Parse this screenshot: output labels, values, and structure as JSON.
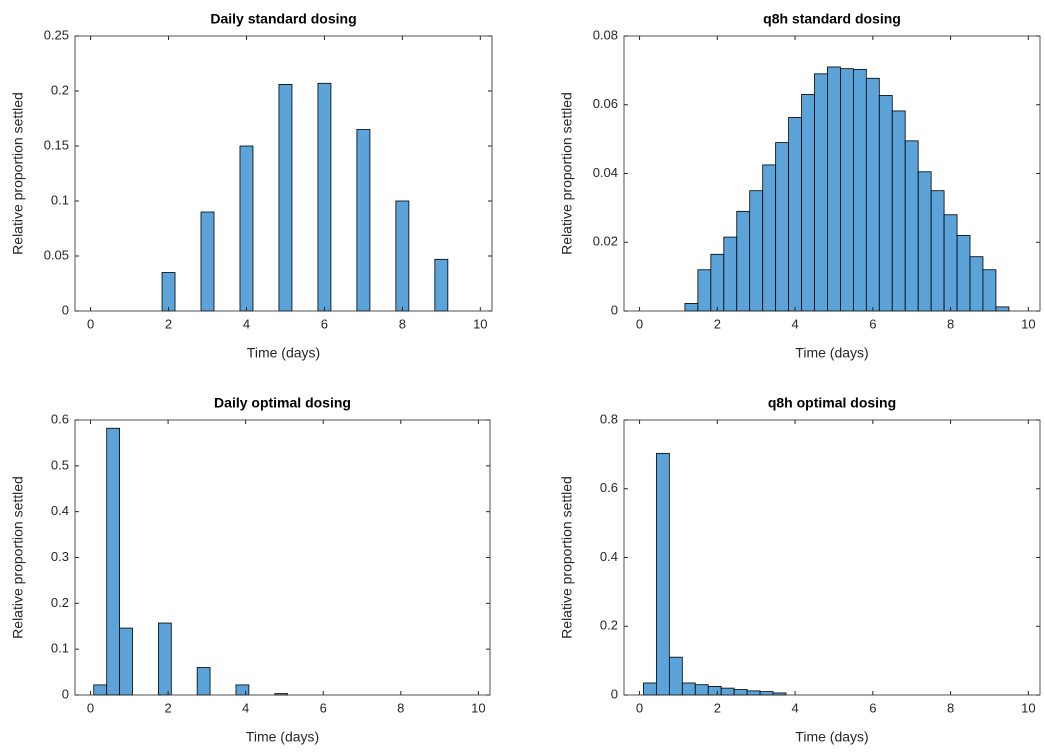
{
  "chart_data": [
    {
      "type": "histogram",
      "title": "Daily standard dosing",
      "xlabel": "Time (days)",
      "ylabel": "Relative proportion settled",
      "bins": [
        1.833,
        2.167,
        2.5,
        2.833,
        3.167,
        3.5,
        3.833,
        4.167,
        4.5,
        4.833,
        5.167,
        5.5,
        5.833,
        6.167,
        6.5,
        6.833,
        7.167,
        7.5,
        7.833,
        8.167,
        8.5,
        8.833,
        9.167
      ],
      "values": [
        0.035,
        0,
        0,
        0.09,
        0,
        0,
        0.15,
        0,
        0,
        0.206,
        0,
        0,
        0.207,
        0,
        0,
        0.165,
        0,
        0,
        0.1,
        0,
        0,
        0.047
      ],
      "color": "#5ba3d8",
      "xlim": [
        -0.4,
        10.3
      ],
      "ylim": [
        0,
        0.25
      ],
      "xticks": [
        0,
        2,
        4,
        6,
        8,
        10
      ],
      "yticks": [
        0,
        0.05,
        0.1,
        0.15,
        0.2,
        0.25
      ]
    },
    {
      "type": "histogram",
      "title": "q8h standard dosing",
      "xlabel": "Time (days)",
      "ylabel": "Relative proportion settled",
      "bins": [
        1.167,
        1.5,
        1.833,
        2.167,
        2.5,
        2.833,
        3.167,
        3.5,
        3.833,
        4.167,
        4.5,
        4.833,
        5.167,
        5.5,
        5.833,
        6.167,
        6.5,
        6.833,
        7.167,
        7.5,
        7.833,
        8.167,
        8.5,
        8.833,
        9.167,
        9.5
      ],
      "values": [
        0.0022,
        0.012,
        0.0165,
        0.0215,
        0.029,
        0.035,
        0.0425,
        0.049,
        0.0563,
        0.063,
        0.069,
        0.071,
        0.0705,
        0.0703,
        0.0677,
        0.0627,
        0.0582,
        0.0495,
        0.0405,
        0.035,
        0.028,
        0.022,
        0.0158,
        0.012,
        0.0012
      ],
      "color": "#5ba3d8",
      "xlim": [
        -0.4,
        10.3
      ],
      "ylim": [
        0,
        0.08
      ],
      "xticks": [
        0,
        2,
        4,
        6,
        8,
        10
      ],
      "yticks": [
        0,
        0.02,
        0.04,
        0.06,
        0.08
      ]
    },
    {
      "type": "histogram",
      "title": "Daily optimal dosing",
      "xlabel": "Time (days)",
      "ylabel": "Relative proportion settled",
      "bins": [
        0.083,
        0.417,
        0.75,
        1.083,
        1.417,
        1.75,
        2.083,
        2.417,
        2.75,
        3.083,
        3.417,
        3.75,
        4.083,
        4.417,
        4.75,
        5.083
      ],
      "values": [
        0.022,
        0.582,
        0.146,
        0,
        0,
        0.157,
        0,
        0,
        0.06,
        0,
        0,
        0.022,
        0,
        0,
        0.003
      ],
      "color": "#5ba3d8",
      "xlim": [
        -0.4,
        10.3
      ],
      "ylim": [
        0,
        0.6
      ],
      "xticks": [
        0,
        2,
        4,
        6,
        8,
        10
      ],
      "yticks": [
        0,
        0.1,
        0.2,
        0.3,
        0.4,
        0.5,
        0.6
      ]
    },
    {
      "type": "histogram",
      "title": "q8h optimal dosing",
      "xlabel": "Time (days)",
      "ylabel": "Relative proportion settled",
      "bins": [
        0.1,
        0.433,
        0.767,
        1.1,
        1.433,
        1.767,
        2.1,
        2.433,
        2.767,
        3.1,
        3.433,
        3.767
      ],
      "values": [
        0.035,
        0.703,
        0.11,
        0.035,
        0.03,
        0.025,
        0.02,
        0.016,
        0.012,
        0.01,
        0.006
      ],
      "color": "#5ba3d8",
      "xlim": [
        -0.4,
        10.3
      ],
      "ylim": [
        0,
        0.8
      ],
      "xticks": [
        0,
        2,
        4,
        6,
        8,
        10
      ],
      "yticks": [
        0,
        0.2,
        0.4,
        0.6,
        0.8
      ]
    }
  ]
}
